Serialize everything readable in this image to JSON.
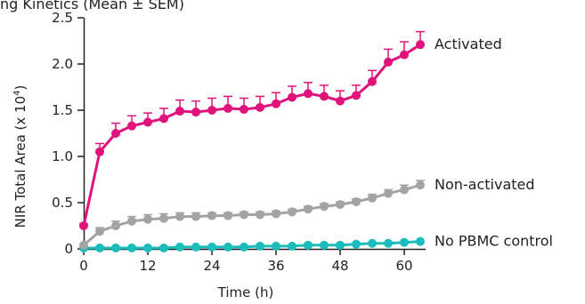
{
  "header_fragment": "ng Kinetics (Mean ± SEM)",
  "chart_data": {
    "type": "line",
    "title": "",
    "xlabel": "Time (h)",
    "ylabel_main": "NIR Total Area (x 10",
    "ylabel_exp": "4",
    "ylabel_close": ")",
    "xlim": [
      0,
      64
    ],
    "ylim": [
      0,
      2.5
    ],
    "x_ticks": [
      0,
      12,
      24,
      36,
      48,
      60
    ],
    "y_ticks": [
      {
        "value": 0,
        "label": "0"
      },
      {
        "value": 0.5,
        "label": "0.5"
      },
      {
        "value": 1.0,
        "label": "1.0"
      },
      {
        "value": 1.5,
        "label": "1.5"
      },
      {
        "value": 2.0,
        "label": "2.0"
      },
      {
        "value": 2.5,
        "label": "2.5"
      }
    ],
    "grid": false,
    "x": [
      0,
      3,
      6,
      9,
      12,
      15,
      18,
      21,
      24,
      27,
      30,
      33,
      36,
      39,
      42,
      45,
      48,
      51,
      54,
      57,
      60,
      63
    ],
    "series": [
      {
        "name": "Activated",
        "color": "#e0127b",
        "values": [
          0.25,
          1.05,
          1.25,
          1.33,
          1.37,
          1.41,
          1.49,
          1.48,
          1.5,
          1.52,
          1.51,
          1.53,
          1.57,
          1.64,
          1.68,
          1.65,
          1.6,
          1.66,
          1.81,
          2.02,
          2.1,
          2.21
        ],
        "errors": [
          0.02,
          0.09,
          0.11,
          0.11,
          0.1,
          0.11,
          0.12,
          0.12,
          0.13,
          0.13,
          0.12,
          0.12,
          0.12,
          0.12,
          0.12,
          0.12,
          0.11,
          0.11,
          0.12,
          0.14,
          0.14,
          0.14
        ]
      },
      {
        "name": "Non-activated",
        "color": "#a3a3a3",
        "values": [
          0.04,
          0.19,
          0.25,
          0.3,
          0.32,
          0.33,
          0.35,
          0.35,
          0.36,
          0.36,
          0.37,
          0.37,
          0.38,
          0.4,
          0.43,
          0.46,
          0.48,
          0.51,
          0.55,
          0.6,
          0.64,
          0.69
        ],
        "errors": [
          0.01,
          0.04,
          0.05,
          0.05,
          0.05,
          0.05,
          0.04,
          0.04,
          0.03,
          0.03,
          0.03,
          0.03,
          0.03,
          0.03,
          0.03,
          0.03,
          0.03,
          0.03,
          0.04,
          0.04,
          0.05,
          0.05
        ]
      },
      {
        "name": "No PBMC control",
        "color": "#1bbcbc",
        "values": [
          0.01,
          0.01,
          0.01,
          0.01,
          0.01,
          0.01,
          0.02,
          0.02,
          0.02,
          0.02,
          0.02,
          0.03,
          0.03,
          0.03,
          0.04,
          0.04,
          0.04,
          0.05,
          0.06,
          0.06,
          0.07,
          0.08
        ],
        "errors": [
          0.005,
          0.005,
          0.005,
          0.005,
          0.005,
          0.005,
          0.005,
          0.005,
          0.005,
          0.005,
          0.005,
          0.005,
          0.005,
          0.005,
          0.005,
          0.005,
          0.005,
          0.005,
          0.005,
          0.005,
          0.005,
          0.005
        ]
      }
    ]
  }
}
